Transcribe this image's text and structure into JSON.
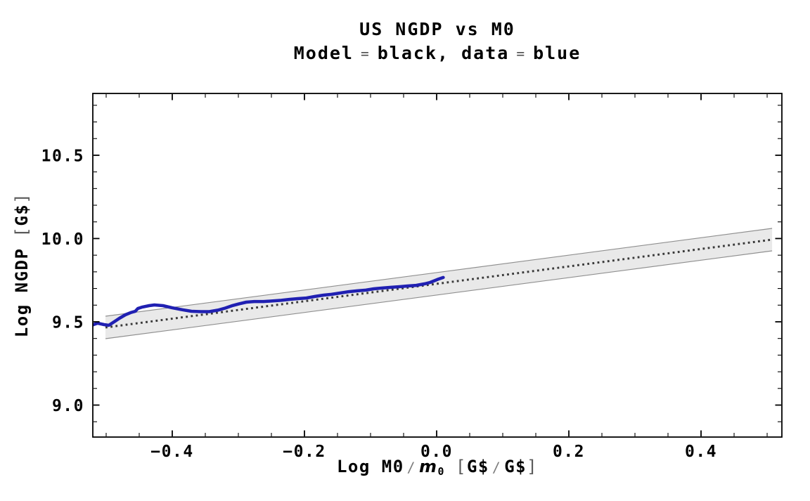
{
  "chart_data": {
    "type": "line",
    "title": "US NGDP vs M0",
    "subtitle": "Model = black, data = blue",
    "subtitle_parts": {
      "p1": "Model",
      "eq1": "=",
      "p2": "black, data",
      "eq2": "=",
      "p3": "blue"
    },
    "xlabel": "Log M0/m0 [G$/G$]",
    "xlabel_parts": {
      "prefix": "Log M0",
      "slash1": "/",
      "var": "m",
      "varsub": "0",
      "bopen": "[",
      "unit1": "G$",
      "slash2": "/",
      "unit2": "G$",
      "bclose": "]"
    },
    "ylabel": "Log NGDP [G$]",
    "ylabel_parts": {
      "prefix": "Log NGDP",
      "bopen": "[",
      "unit": "G$",
      "bclose": "]"
    },
    "legend": {
      "model": "black",
      "data": "blue"
    },
    "x_range": [
      -0.5202,
      0.5223
    ],
    "y_range": [
      8.808,
      10.871
    ],
    "x_major_ticks": [
      {
        "v": -0.4,
        "label": "−0.4"
      },
      {
        "v": -0.2,
        "label": "−0.2"
      },
      {
        "v": 0.0,
        "label": "0.0"
      },
      {
        "v": 0.2,
        "label": "0.2"
      },
      {
        "v": 0.4,
        "label": "0.4"
      }
    ],
    "x_minor_step": 0.05,
    "x_minor_range": [
      -0.5,
      0.5
    ],
    "y_major_ticks": [
      {
        "v": 9.0,
        "label": "9.0"
      },
      {
        "v": 9.5,
        "label": "9.5"
      },
      {
        "v": 10.0,
        "label": "10.0"
      },
      {
        "v": 10.5,
        "label": "10.5"
      }
    ],
    "y_minor_step": 0.1,
    "y_minor_range": [
      8.9,
      10.8
    ],
    "grid": "off",
    "model_line": {
      "x": [
        -0.501,
        0.5075
      ],
      "y": [
        9.466,
        9.9935
      ]
    },
    "band": {
      "halfwidth": 0.0675
    },
    "series": [
      {
        "name": "model",
        "style": "dotted",
        "color": "#3a3a3a"
      },
      {
        "name": "data",
        "style": "solid",
        "color": "#2020b2"
      }
    ],
    "data_points": [
      [
        -0.522,
        9.479
      ],
      [
        -0.513,
        9.492
      ],
      [
        -0.503,
        9.483
      ],
      [
        -0.496,
        9.479
      ],
      [
        -0.488,
        9.5
      ],
      [
        -0.48,
        9.521
      ],
      [
        -0.471,
        9.542
      ],
      [
        -0.463,
        9.555
      ],
      [
        -0.456,
        9.563
      ],
      [
        -0.452,
        9.58
      ],
      [
        -0.445,
        9.589
      ],
      [
        -0.435,
        9.597
      ],
      [
        -0.427,
        9.601
      ],
      [
        -0.414,
        9.597
      ],
      [
        -0.4,
        9.584
      ],
      [
        -0.384,
        9.572
      ],
      [
        -0.371,
        9.563
      ],
      [
        -0.357,
        9.561
      ],
      [
        -0.344,
        9.561
      ],
      [
        -0.331,
        9.57
      ],
      [
        -0.32,
        9.582
      ],
      [
        -0.31,
        9.596
      ],
      [
        -0.299,
        9.608
      ],
      [
        -0.288,
        9.618
      ],
      [
        -0.276,
        9.622
      ],
      [
        -0.262,
        9.622
      ],
      [
        -0.248,
        9.625
      ],
      [
        -0.235,
        9.629
      ],
      [
        -0.222,
        9.635
      ],
      [
        -0.21,
        9.639
      ],
      [
        -0.197,
        9.643
      ],
      [
        -0.184,
        9.652
      ],
      [
        -0.171,
        9.66
      ],
      [
        -0.159,
        9.665
      ],
      [
        -0.146,
        9.673
      ],
      [
        -0.133,
        9.681
      ],
      [
        -0.12,
        9.686
      ],
      [
        -0.107,
        9.69
      ],
      [
        -0.095,
        9.698
      ],
      [
        -0.082,
        9.703
      ],
      [
        -0.069,
        9.707
      ],
      [
        -0.056,
        9.711
      ],
      [
        -0.044,
        9.715
      ],
      [
        -0.031,
        9.719
      ],
      [
        -0.018,
        9.728
      ],
      [
        -0.01,
        9.736
      ],
      [
        -0.003,
        9.747
      ],
      [
        0.003,
        9.757
      ],
      [
        0.01,
        9.766
      ]
    ],
    "colors": {
      "data": "#2020b2",
      "model": "#3a3a3a",
      "band_fill": "#e9e9e9",
      "band_edge": "#8f8f8f",
      "frame": "#000000",
      "background": "#ffffff"
    }
  }
}
